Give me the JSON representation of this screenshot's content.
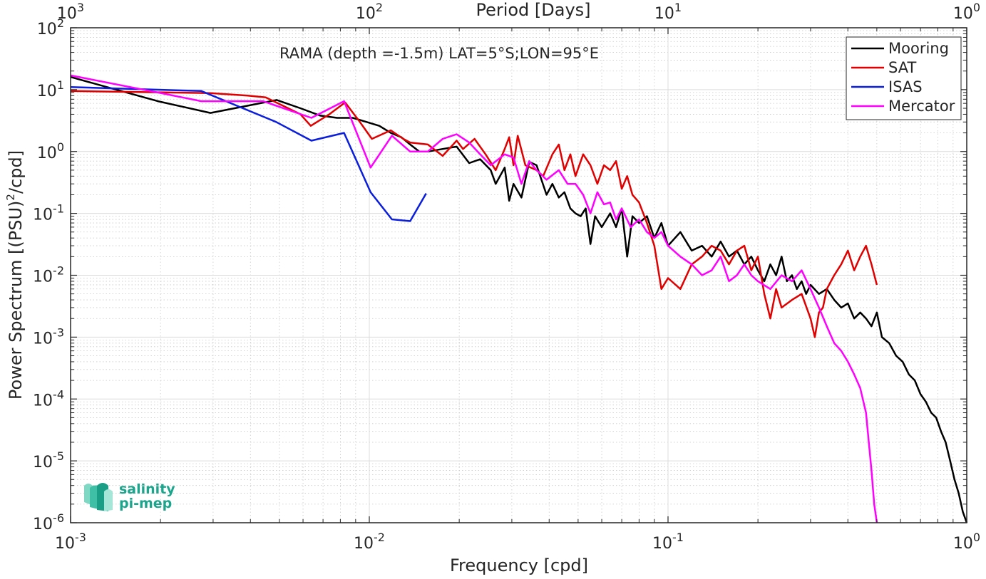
{
  "chart_data": {
    "type": "line",
    "log_x": true,
    "log_y": true,
    "xlabel": "Frequency [cpd]",
    "ylabel_parts": [
      "Power Spectrum [(PSU)",
      "2",
      "/cpd]"
    ],
    "top_xlabel": "Period [Days]",
    "annotation": "RAMA (depth =-1.5m) LAT=5°S;LON=95°E",
    "xlim": [
      0.001,
      1
    ],
    "ylim": [
      1e-06,
      100
    ],
    "grid": true,
    "legend_position": "top-right",
    "x_ticks": [
      {
        "value": 0.001,
        "base": "10",
        "exp": "-3"
      },
      {
        "value": 0.01,
        "base": "10",
        "exp": "-2"
      },
      {
        "value": 0.1,
        "base": "10",
        "exp": "-1"
      },
      {
        "value": 1,
        "base": "10",
        "exp": "0"
      }
    ],
    "top_ticks": [
      {
        "value": 0.001,
        "base": "10",
        "exp": "3"
      },
      {
        "value": 0.01,
        "base": "10",
        "exp": "2"
      },
      {
        "value": 0.1,
        "base": "10",
        "exp": "1"
      },
      {
        "value": 1,
        "base": "10",
        "exp": "0"
      }
    ],
    "y_ticks": [
      {
        "value": 1e-06,
        "base": "10",
        "exp": "-6"
      },
      {
        "value": 1e-05,
        "base": "10",
        "exp": "-5"
      },
      {
        "value": 0.0001,
        "base": "10",
        "exp": "-4"
      },
      {
        "value": 0.001,
        "base": "10",
        "exp": "-3"
      },
      {
        "value": 0.01,
        "base": "10",
        "exp": "-2"
      },
      {
        "value": 0.1,
        "base": "10",
        "exp": "-1"
      },
      {
        "value": 1,
        "base": "10",
        "exp": "0"
      },
      {
        "value": 10,
        "base": "10",
        "exp": "1"
      },
      {
        "value": 100,
        "base": "10",
        "exp": "2"
      }
    ],
    "series": [
      {
        "name": "Mooring",
        "color": "#000000",
        "points": [
          [
            0.001,
            16
          ],
          [
            0.00196,
            6.5
          ],
          [
            0.00294,
            4.2
          ],
          [
            0.00392,
            5.5
          ],
          [
            0.0049,
            6.8
          ],
          [
            0.00588,
            5
          ],
          [
            0.00686,
            3.8
          ],
          [
            0.0078,
            3.5
          ],
          [
            0.0088,
            3.5
          ],
          [
            0.0098,
            3
          ],
          [
            0.0108,
            2.6
          ],
          [
            0.0118,
            2
          ],
          [
            0.0128,
            1.7
          ],
          [
            0.0137,
            1.3
          ],
          [
            0.0147,
            1.0
          ],
          [
            0.0157,
            1.0
          ],
          [
            0.0176,
            1.1
          ],
          [
            0.0196,
            1.2
          ],
          [
            0.0216,
            0.65
          ],
          [
            0.0235,
            0.75
          ],
          [
            0.0255,
            0.5
          ],
          [
            0.0265,
            0.3
          ],
          [
            0.0284,
            0.55
          ],
          [
            0.0294,
            0.16
          ],
          [
            0.0304,
            0.3
          ],
          [
            0.0323,
            0.18
          ],
          [
            0.0343,
            0.68
          ],
          [
            0.0363,
            0.6
          ],
          [
            0.0392,
            0.2
          ],
          [
            0.041,
            0.3
          ],
          [
            0.0431,
            0.18
          ],
          [
            0.045,
            0.22
          ],
          [
            0.0471,
            0.12
          ],
          [
            0.049,
            0.1
          ],
          [
            0.051,
            0.09
          ],
          [
            0.053,
            0.12
          ],
          [
            0.055,
            0.032
          ],
          [
            0.057,
            0.09
          ],
          [
            0.06,
            0.06
          ],
          [
            0.064,
            0.1
          ],
          [
            0.067,
            0.06
          ],
          [
            0.07,
            0.12
          ],
          [
            0.073,
            0.02
          ],
          [
            0.076,
            0.09
          ],
          [
            0.08,
            0.07
          ],
          [
            0.085,
            0.09
          ],
          [
            0.09,
            0.04
          ],
          [
            0.095,
            0.07
          ],
          [
            0.1,
            0.03
          ],
          [
            0.11,
            0.05
          ],
          [
            0.12,
            0.025
          ],
          [
            0.13,
            0.03
          ],
          [
            0.14,
            0.02
          ],
          [
            0.15,
            0.035
          ],
          [
            0.16,
            0.02
          ],
          [
            0.17,
            0.025
          ],
          [
            0.18,
            0.015
          ],
          [
            0.19,
            0.02
          ],
          [
            0.2,
            0.012
          ],
          [
            0.21,
            0.008
          ],
          [
            0.22,
            0.015
          ],
          [
            0.23,
            0.01
          ],
          [
            0.24,
            0.02
          ],
          [
            0.25,
            0.008
          ],
          [
            0.26,
            0.01
          ],
          [
            0.27,
            0.006
          ],
          [
            0.28,
            0.008
          ],
          [
            0.29,
            0.005
          ],
          [
            0.3,
            0.007
          ],
          [
            0.32,
            0.005
          ],
          [
            0.34,
            0.006
          ],
          [
            0.36,
            0.004
          ],
          [
            0.38,
            0.003
          ],
          [
            0.4,
            0.0035
          ],
          [
            0.42,
            0.002
          ],
          [
            0.44,
            0.0025
          ],
          [
            0.46,
            0.002
          ],
          [
            0.48,
            0.0015
          ],
          [
            0.5,
            0.0025
          ],
          [
            0.52,
            0.001
          ],
          [
            0.55,
            0.0008
          ],
          [
            0.58,
            0.0005
          ],
          [
            0.61,
            0.0004
          ],
          [
            0.64,
            0.00025
          ],
          [
            0.67,
            0.0002
          ],
          [
            0.7,
            0.00012
          ],
          [
            0.73,
            9e-05
          ],
          [
            0.76,
            6e-05
          ],
          [
            0.79,
            5e-05
          ],
          [
            0.82,
            3e-05
          ],
          [
            0.85,
            2e-05
          ],
          [
            0.88,
            1e-05
          ],
          [
            0.91,
            5e-06
          ],
          [
            0.94,
            3e-06
          ],
          [
            0.97,
            1.5e-06
          ],
          [
            1.0,
            1e-06
          ]
        ]
      },
      {
        "name": "SAT",
        "color": "#e00000",
        "points": [
          [
            0.001,
            9.5
          ],
          [
            0.00294,
            8.8
          ],
          [
            0.00392,
            8
          ],
          [
            0.0045,
            7.5
          ],
          [
            0.00588,
            4
          ],
          [
            0.00637,
            2.6
          ],
          [
            0.00735,
            4
          ],
          [
            0.0083,
            6.2
          ],
          [
            0.0093,
            3
          ],
          [
            0.0102,
            1.6
          ],
          [
            0.0118,
            2.2
          ],
          [
            0.013,
            1.6
          ],
          [
            0.0137,
            1.4
          ],
          [
            0.0157,
            1.3
          ],
          [
            0.0176,
            0.85
          ],
          [
            0.0196,
            1.5
          ],
          [
            0.0206,
            1.1
          ],
          [
            0.0225,
            1.6
          ],
          [
            0.0245,
            0.9
          ],
          [
            0.0265,
            0.5
          ],
          [
            0.0284,
            1.1
          ],
          [
            0.0294,
            1.7
          ],
          [
            0.0304,
            0.6
          ],
          [
            0.0314,
            1.8
          ],
          [
            0.0333,
            0.6
          ],
          [
            0.0363,
            0.5
          ],
          [
            0.0382,
            0.4
          ],
          [
            0.041,
            0.9
          ],
          [
            0.0431,
            1.3
          ],
          [
            0.045,
            0.5
          ],
          [
            0.0471,
            0.9
          ],
          [
            0.049,
            0.4
          ],
          [
            0.052,
            0.9
          ],
          [
            0.055,
            0.6
          ],
          [
            0.058,
            0.3
          ],
          [
            0.061,
            0.6
          ],
          [
            0.064,
            0.5
          ],
          [
            0.067,
            0.7
          ],
          [
            0.07,
            0.25
          ],
          [
            0.073,
            0.4
          ],
          [
            0.076,
            0.2
          ],
          [
            0.08,
            0.15
          ],
          [
            0.085,
            0.07
          ],
          [
            0.09,
            0.03
          ],
          [
            0.095,
            0.006
          ],
          [
            0.1,
            0.009
          ],
          [
            0.11,
            0.006
          ],
          [
            0.12,
            0.015
          ],
          [
            0.13,
            0.02
          ],
          [
            0.14,
            0.03
          ],
          [
            0.15,
            0.025
          ],
          [
            0.16,
            0.015
          ],
          [
            0.17,
            0.025
          ],
          [
            0.18,
            0.03
          ],
          [
            0.19,
            0.012
          ],
          [
            0.2,
            0.02
          ],
          [
            0.21,
            0.005
          ],
          [
            0.22,
            0.002
          ],
          [
            0.23,
            0.006
          ],
          [
            0.24,
            0.003
          ],
          [
            0.26,
            0.004
          ],
          [
            0.28,
            0.005
          ],
          [
            0.3,
            0.002
          ],
          [
            0.31,
            0.001
          ],
          [
            0.32,
            0.0025
          ],
          [
            0.33,
            0.003
          ],
          [
            0.34,
            0.006
          ],
          [
            0.36,
            0.01
          ],
          [
            0.38,
            0.015
          ],
          [
            0.4,
            0.025
          ],
          [
            0.42,
            0.012
          ],
          [
            0.44,
            0.02
          ],
          [
            0.46,
            0.03
          ],
          [
            0.48,
            0.015
          ],
          [
            0.5,
            0.007
          ]
        ]
      },
      {
        "name": "ISAS",
        "color": "#0a1edc",
        "points": [
          [
            0.001,
            11
          ],
          [
            0.00274,
            9.5
          ],
          [
            0.00488,
            3
          ],
          [
            0.0064,
            1.5
          ],
          [
            0.00823,
            2
          ],
          [
            0.0101,
            0.22
          ],
          [
            0.0119,
            0.08
          ],
          [
            0.0137,
            0.075
          ],
          [
            0.0155,
            0.21
          ]
        ]
      },
      {
        "name": "Mercator",
        "color": "#ff00ff",
        "points": [
          [
            0.001,
            17
          ],
          [
            0.00196,
            9
          ],
          [
            0.00274,
            6.5
          ],
          [
            0.00441,
            6.5
          ],
          [
            0.0064,
            3.5
          ],
          [
            0.00823,
            6.5
          ],
          [
            0.0101,
            0.55
          ],
          [
            0.0119,
            1.8
          ],
          [
            0.0137,
            1
          ],
          [
            0.0157,
            1
          ],
          [
            0.0176,
            1.6
          ],
          [
            0.0196,
            1.9
          ],
          [
            0.0216,
            1.4
          ],
          [
            0.0235,
            0.9
          ],
          [
            0.0255,
            0.6
          ],
          [
            0.0284,
            0.9
          ],
          [
            0.0304,
            0.8
          ],
          [
            0.0323,
            0.3
          ],
          [
            0.0343,
            0.7
          ],
          [
            0.0363,
            0.5
          ],
          [
            0.0392,
            0.35
          ],
          [
            0.0431,
            0.5
          ],
          [
            0.0461,
            0.3
          ],
          [
            0.049,
            0.3
          ],
          [
            0.052,
            0.2
          ],
          [
            0.055,
            0.1
          ],
          [
            0.058,
            0.22
          ],
          [
            0.061,
            0.14
          ],
          [
            0.064,
            0.15
          ],
          [
            0.067,
            0.08
          ],
          [
            0.07,
            0.12
          ],
          [
            0.075,
            0.06
          ],
          [
            0.08,
            0.08
          ],
          [
            0.085,
            0.05
          ],
          [
            0.09,
            0.04
          ],
          [
            0.095,
            0.05
          ],
          [
            0.1,
            0.03
          ],
          [
            0.11,
            0.02
          ],
          [
            0.12,
            0.015
          ],
          [
            0.13,
            0.01
          ],
          [
            0.14,
            0.012
          ],
          [
            0.15,
            0.02
          ],
          [
            0.16,
            0.008
          ],
          [
            0.17,
            0.01
          ],
          [
            0.18,
            0.015
          ],
          [
            0.19,
            0.01
          ],
          [
            0.2,
            0.008
          ],
          [
            0.22,
            0.006
          ],
          [
            0.24,
            0.01
          ],
          [
            0.26,
            0.008
          ],
          [
            0.28,
            0.012
          ],
          [
            0.3,
            0.006
          ],
          [
            0.32,
            0.003
          ],
          [
            0.34,
            0.0015
          ],
          [
            0.36,
            0.0008
          ],
          [
            0.38,
            0.0006
          ],
          [
            0.4,
            0.0004
          ],
          [
            0.42,
            0.00025
          ],
          [
            0.44,
            0.00015
          ],
          [
            0.46,
            6e-05
          ],
          [
            0.47,
            2e-05
          ],
          [
            0.48,
            7e-06
          ],
          [
            0.49,
            2e-06
          ],
          [
            0.5,
            1e-06
          ]
        ]
      }
    ]
  },
  "logo": {
    "line1": "salinity",
    "line2": "pi-mep"
  }
}
